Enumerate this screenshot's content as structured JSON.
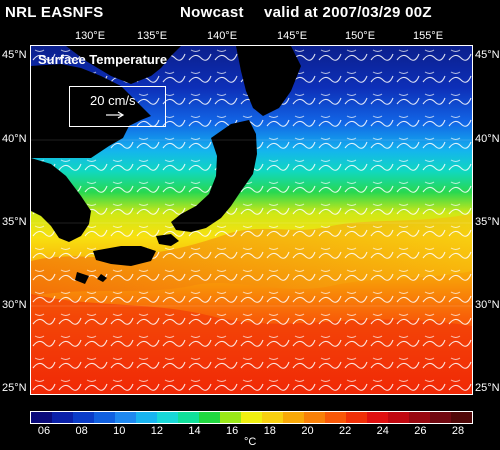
{
  "header": {
    "source": "NRL EASNFS",
    "mode": "Nowcast",
    "valid": "valid at 2007/03/29 00Z"
  },
  "map": {
    "field_title": "Surface Temperature",
    "vector_scale_label": "20 cm/s",
    "lon_labels": [
      "130°E",
      "135°E",
      "140°E",
      "145°E",
      "150°E",
      "155°E"
    ],
    "lat_labels_left": [
      "45°N",
      "40°N",
      "35°N",
      "30°N",
      "25°N"
    ],
    "lat_labels_right": [
      "45°N",
      "40°N",
      "35°N",
      "30°N",
      "25°N"
    ],
    "colors": {
      "land": "#000000",
      "ocean_cold": "#0b1f8c",
      "ocean_warm": "#ff1e00"
    }
  },
  "colorbar": {
    "tick_labels": [
      "06",
      "08",
      "10",
      "12",
      "14",
      "16",
      "18",
      "20",
      "22",
      "24",
      "26",
      "28"
    ],
    "unit": "°C",
    "colors": [
      "#0a0a7a",
      "#0a20a8",
      "#0a3cc8",
      "#1060e0",
      "#1e88f0",
      "#18b4f0",
      "#18d8d8",
      "#10e09a",
      "#20d840",
      "#9ae818",
      "#f0f010",
      "#f8d010",
      "#f8a808",
      "#f88008",
      "#f85808",
      "#f03008",
      "#e01010",
      "#c00810",
      "#980810",
      "#700810",
      "#500808"
    ]
  }
}
